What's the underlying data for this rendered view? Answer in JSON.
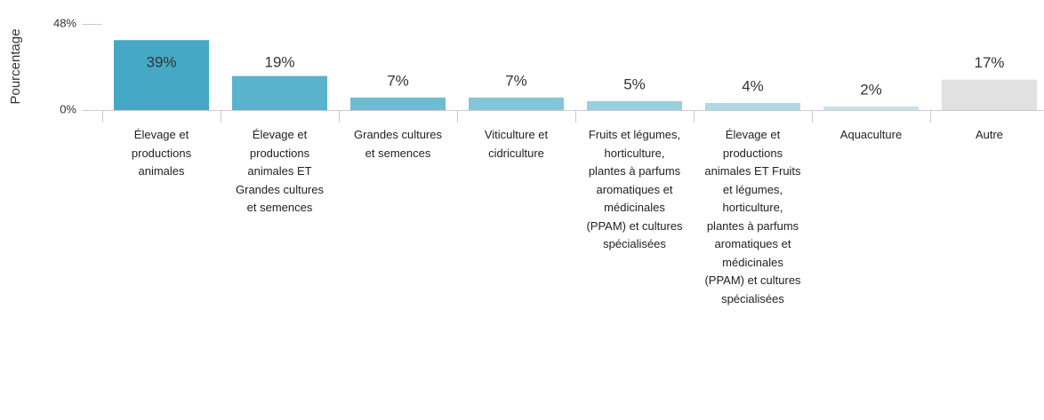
{
  "chart_data": {
    "type": "bar",
    "y_label": "Pourcentage",
    "categories": [
      "Élevage et productions animales",
      "Élevage et productions animales ET Grandes cultures et semences",
      "Grandes cultures et semences",
      "Viticulture et cidriculture",
      "Fruits et légumes, horticulture, plantes à parfums aromatiques et médicinales (PPAM) et cultures spécialisées",
      "Élevage et productions animales ET Fruits et légumes, horticulture, plantes à parfums aromatiques et médicinales (PPAM) et cultures spécialisées",
      "Aquaculture",
      "Autre"
    ],
    "values": [
      39,
      19,
      7,
      7,
      5,
      4,
      2,
      17
    ],
    "value_labels": [
      "39%",
      "19%",
      "7%",
      "7%",
      "5%",
      "4%",
      "2%",
      "17%"
    ],
    "colors": [
      "#45a9c5",
      "#59b3cb",
      "#6dbdd2",
      "#84c6d7",
      "#9acfdd",
      "#b0d8e3",
      "#c7e3ea",
      "#e1e1e1"
    ],
    "ylim": [
      0,
      48
    ],
    "yticks": [
      {
        "value": 0,
        "label": "0%"
      },
      {
        "value": 48,
        "label": "48%"
      }
    ]
  }
}
